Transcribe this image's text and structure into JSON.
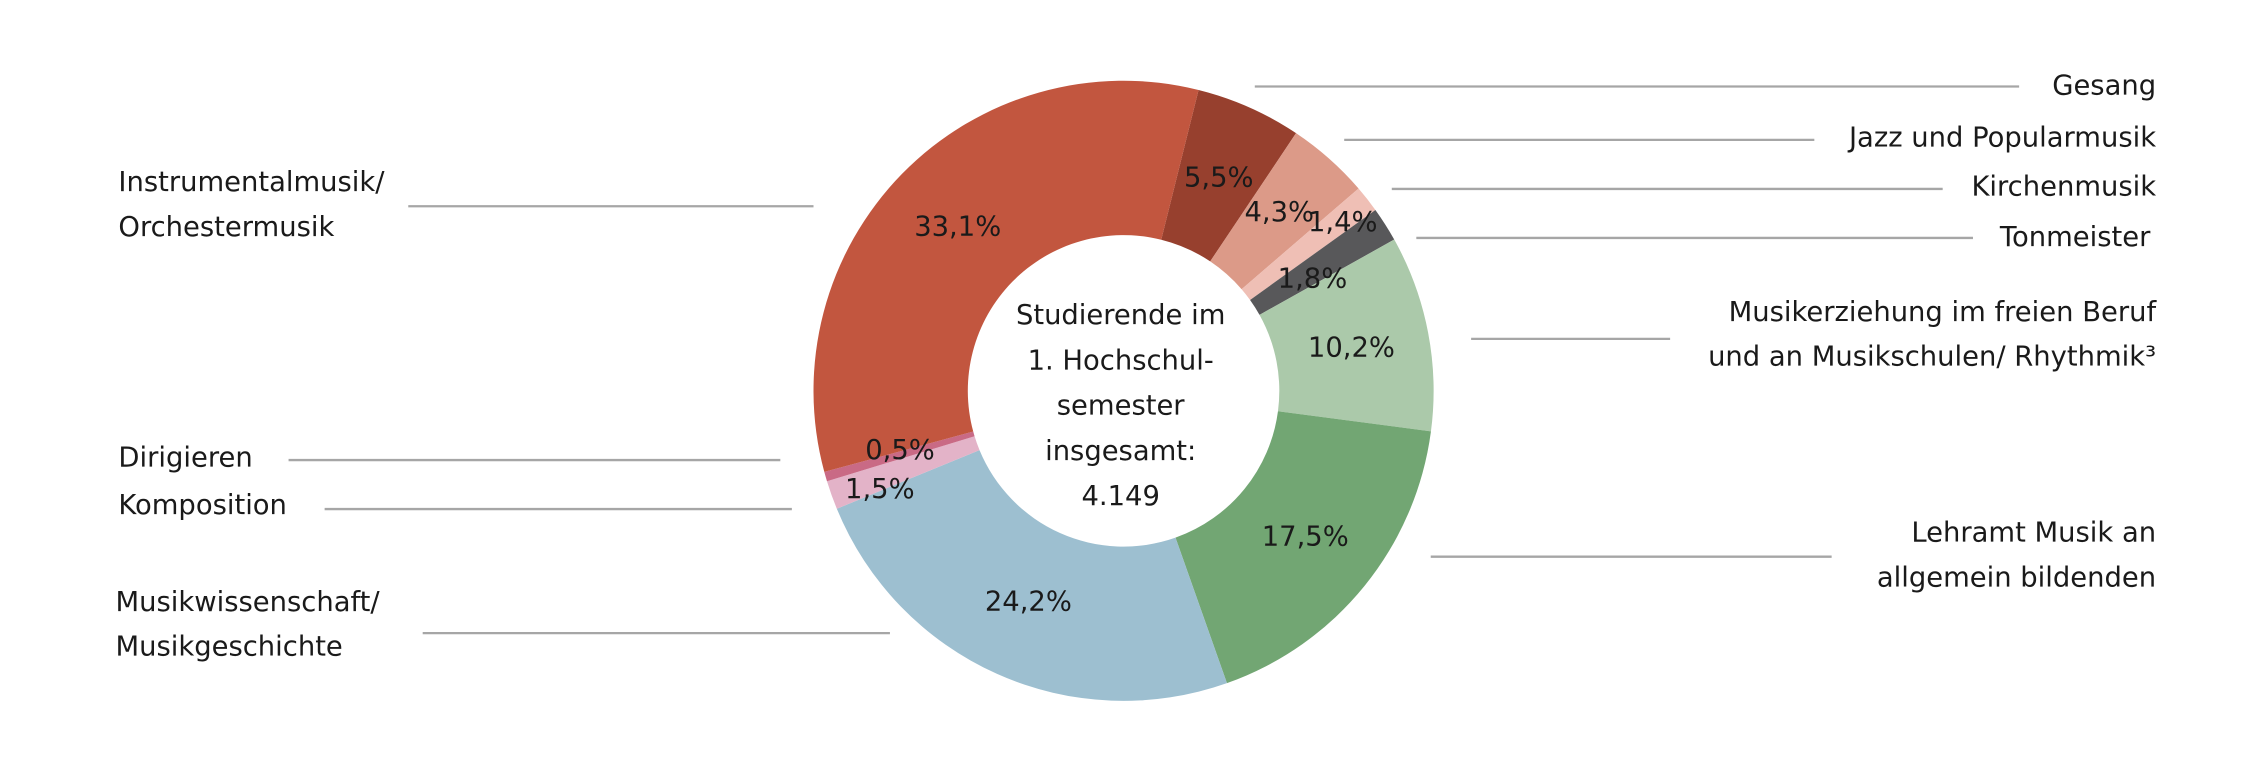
{
  "chart_data": {
    "type": "pie",
    "center_label": "Studierende im\n1. Hochschul-\nsemester\ninsgesamt:",
    "total": 4149,
    "total_label": "4.149",
    "categories": [
      "Gesang",
      "Jazz und Popularmusik",
      "Kirchenmusik",
      "Tonmeister",
      "Musikerziehung im freien Beruf\nund an Musikschulen/ Rhythmik³",
      "Lehramt Musik an\nallgemein bildenden",
      "Musikwissenschaft/\nMusikgeschichte",
      "Komposition",
      "Dirigieren",
      "Instrumentalmusik/\nOrchestermusik"
    ],
    "values": [
      5.5,
      4.3,
      1.4,
      1.8,
      10.2,
      17.5,
      24.2,
      1.5,
      0.5,
      33.1
    ],
    "value_labels": [
      "5,5%",
      "4,3%",
      "1,4%",
      "1,8%",
      "10,2%",
      "17,5%",
      "24,2%",
      "1,5%",
      "0,5%",
      "33,1%"
    ],
    "colors": [
      "#97402e",
      "#dc9a88",
      "#efbfb5",
      "#58585a",
      "#abc9aa",
      "#72a673",
      "#9dbfd0",
      "#e3b3c8",
      "#c96a85",
      "#c2563f"
    ]
  }
}
